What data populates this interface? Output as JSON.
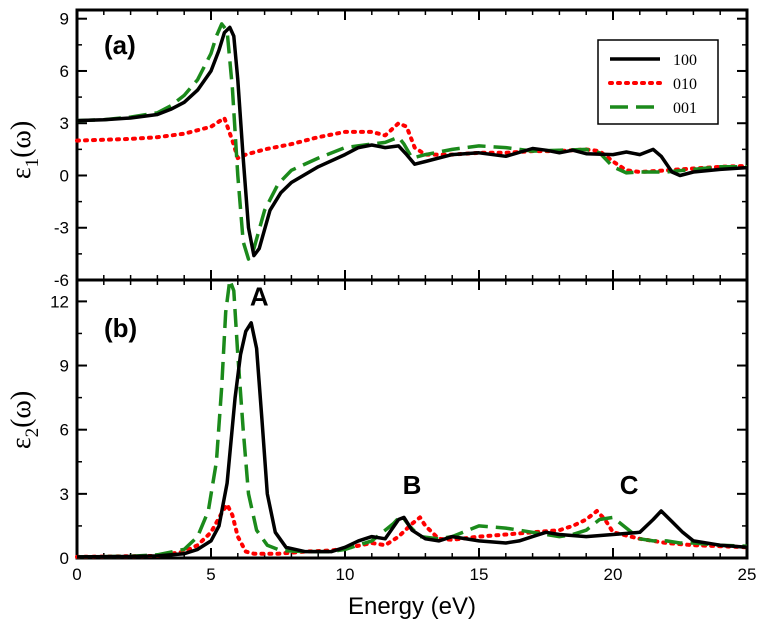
{
  "chart_data": [
    {
      "type": "line",
      "panel_label": "(a)",
      "ylabel": {
        "base": "ε",
        "sub": "1",
        "rest": "(ω)"
      },
      "xlim": [
        0,
        25
      ],
      "ylim": [
        -6,
        9.5
      ],
      "yticks": [
        -6,
        -3,
        0,
        3,
        6,
        9
      ],
      "yticklabels": [
        "-6",
        "-3",
        "0",
        "3",
        "6",
        "9"
      ],
      "series": [
        {
          "name": "100",
          "color": "#000000",
          "style": "solid",
          "points": [
            [
              0,
              3.15
            ],
            [
              1,
              3.2
            ],
            [
              2,
              3.3
            ],
            [
              3,
              3.5
            ],
            [
              3.5,
              3.8
            ],
            [
              4,
              4.2
            ],
            [
              4.5,
              4.9
            ],
            [
              5,
              6.0
            ],
            [
              5.3,
              7.2
            ],
            [
              5.5,
              8.2
            ],
            [
              5.7,
              8.5
            ],
            [
              5.85,
              8.0
            ],
            [
              6.0,
              5.5
            ],
            [
              6.2,
              1.0
            ],
            [
              6.4,
              -3.0
            ],
            [
              6.6,
              -4.6
            ],
            [
              6.8,
              -4.2
            ],
            [
              7.2,
              -2.0
            ],
            [
              7.6,
              -1.0
            ],
            [
              8,
              -0.4
            ],
            [
              9,
              0.5
            ],
            [
              10,
              1.2
            ],
            [
              10.5,
              1.6
            ],
            [
              11,
              1.75
            ],
            [
              11.5,
              1.6
            ],
            [
              12,
              1.7
            ],
            [
              12.3,
              1.2
            ],
            [
              12.6,
              0.65
            ],
            [
              13,
              0.8
            ],
            [
              14,
              1.2
            ],
            [
              15,
              1.3
            ],
            [
              16,
              1.1
            ],
            [
              17,
              1.55
            ],
            [
              17.5,
              1.45
            ],
            [
              18,
              1.3
            ],
            [
              18.5,
              1.45
            ],
            [
              19,
              1.25
            ],
            [
              20,
              1.2
            ],
            [
              20.5,
              1.35
            ],
            [
              21,
              1.2
            ],
            [
              21.5,
              1.5
            ],
            [
              21.8,
              1.1
            ],
            [
              22.2,
              0.2
            ],
            [
              22.5,
              0.0
            ],
            [
              23,
              0.2
            ],
            [
              24,
              0.35
            ],
            [
              25,
              0.45
            ]
          ]
        },
        {
          "name": "010",
          "color": "#ff0000",
          "style": "dotted",
          "points": [
            [
              0,
              2.0
            ],
            [
              2,
              2.1
            ],
            [
              3,
              2.2
            ],
            [
              4,
              2.4
            ],
            [
              5,
              2.8
            ],
            [
              5.5,
              3.3
            ],
            [
              5.8,
              2.0
            ],
            [
              6.0,
              1.0
            ],
            [
              6.3,
              1.2
            ],
            [
              7,
              1.5
            ],
            [
              8,
              1.8
            ],
            [
              9,
              2.2
            ],
            [
              10,
              2.5
            ],
            [
              11,
              2.5
            ],
            [
              11.5,
              2.3
            ],
            [
              12,
              3.0
            ],
            [
              12.3,
              2.8
            ],
            [
              12.6,
              1.6
            ],
            [
              13,
              1.2
            ],
            [
              14,
              1.2
            ],
            [
              15,
              1.3
            ],
            [
              16,
              1.3
            ],
            [
              17,
              1.4
            ],
            [
              18,
              1.4
            ],
            [
              19,
              1.5
            ],
            [
              19.5,
              1.4
            ],
            [
              20,
              0.8
            ],
            [
              20.5,
              0.3
            ],
            [
              21,
              0.2
            ],
            [
              22,
              0.3
            ],
            [
              23,
              0.4
            ],
            [
              24,
              0.5
            ],
            [
              25,
              0.55
            ]
          ]
        },
        {
          "name": "001",
          "color": "#1b8a1b",
          "style": "dashed",
          "points": [
            [
              0,
              3.15
            ],
            [
              1,
              3.2
            ],
            [
              2,
              3.35
            ],
            [
              3,
              3.6
            ],
            [
              3.5,
              4.0
            ],
            [
              4,
              4.6
            ],
            [
              4.5,
              5.5
            ],
            [
              5,
              7.0
            ],
            [
              5.2,
              8.0
            ],
            [
              5.4,
              8.7
            ],
            [
              5.6,
              8.3
            ],
            [
              5.8,
              5.0
            ],
            [
              6.0,
              0.0
            ],
            [
              6.2,
              -3.8
            ],
            [
              6.4,
              -4.8
            ],
            [
              6.6,
              -4.2
            ],
            [
              7,
              -2.0
            ],
            [
              7.5,
              -0.5
            ],
            [
              8,
              0.3
            ],
            [
              9,
              1.0
            ],
            [
              10,
              1.6
            ],
            [
              11,
              1.8
            ],
            [
              11.5,
              1.9
            ],
            [
              12,
              2.2
            ],
            [
              12.2,
              1.8
            ],
            [
              12.5,
              1.0
            ],
            [
              13,
              1.2
            ],
            [
              14,
              1.5
            ],
            [
              15,
              1.7
            ],
            [
              16,
              1.6
            ],
            [
              17,
              1.4
            ],
            [
              18,
              1.45
            ],
            [
              19,
              1.5
            ],
            [
              19.5,
              1.3
            ],
            [
              20,
              0.5
            ],
            [
              20.5,
              0.15
            ],
            [
              21,
              0.2
            ],
            [
              22,
              0.2
            ],
            [
              23,
              0.35
            ],
            [
              24,
              0.5
            ],
            [
              25,
              0.5
            ]
          ]
        }
      ],
      "legend": {
        "entries": [
          "100",
          "010",
          "001"
        ],
        "position": "top-right"
      }
    },
    {
      "type": "line",
      "panel_label": "(b)",
      "ylabel": {
        "base": "ε",
        "sub": "2",
        "rest": "(ω)"
      },
      "xlabel": "Energy (eV)",
      "xlim": [
        0,
        25
      ],
      "ylim": [
        0,
        13
      ],
      "yticks": [
        0,
        3,
        6,
        9,
        12
      ],
      "yticklabels": [
        "0",
        "3",
        "6",
        "9",
        "12"
      ],
      "xticks": [
        0,
        5,
        10,
        15,
        20,
        25
      ],
      "xticklabels": [
        "0",
        "5",
        "10",
        "15",
        "20",
        "25"
      ],
      "annotations": [
        {
          "text": "A",
          "x": 6.8,
          "y": 11.8
        },
        {
          "text": "B",
          "x": 12.5,
          "y": 3.0
        },
        {
          "text": "C",
          "x": 20.6,
          "y": 3.0
        }
      ],
      "series": [
        {
          "name": "100",
          "color": "#000000",
          "style": "solid",
          "points": [
            [
              0,
              0.05
            ],
            [
              2,
              0.07
            ],
            [
              3,
              0.1
            ],
            [
              4,
              0.2
            ],
            [
              4.5,
              0.4
            ],
            [
              5,
              0.8
            ],
            [
              5.3,
              1.5
            ],
            [
              5.6,
              3.5
            ],
            [
              5.9,
              7.5
            ],
            [
              6.1,
              9.5
            ],
            [
              6.3,
              10.6
            ],
            [
              6.5,
              11.0
            ],
            [
              6.7,
              9.8
            ],
            [
              6.9,
              6.5
            ],
            [
              7.1,
              3.0
            ],
            [
              7.4,
              1.2
            ],
            [
              7.8,
              0.5
            ],
            [
              8.5,
              0.3
            ],
            [
              9.5,
              0.3
            ],
            [
              10,
              0.5
            ],
            [
              10.5,
              0.8
            ],
            [
              11,
              1.0
            ],
            [
              11.5,
              0.9
            ],
            [
              12,
              1.8
            ],
            [
              12.2,
              1.9
            ],
            [
              12.5,
              1.3
            ],
            [
              13,
              0.9
            ],
            [
              13.5,
              0.8
            ],
            [
              14,
              1.0
            ],
            [
              15,
              0.8
            ],
            [
              16,
              0.7
            ],
            [
              16.5,
              0.8
            ],
            [
              17,
              1.0
            ],
            [
              17.5,
              1.2
            ],
            [
              18,
              1.1
            ],
            [
              19,
              1.0
            ],
            [
              20,
              1.1
            ],
            [
              21,
              1.2
            ],
            [
              21.5,
              1.8
            ],
            [
              21.8,
              2.2
            ],
            [
              22.2,
              1.7
            ],
            [
              22.6,
              1.2
            ],
            [
              23,
              0.8
            ],
            [
              24,
              0.6
            ],
            [
              25,
              0.5
            ]
          ]
        },
        {
          "name": "010",
          "color": "#ff0000",
          "style": "dotted",
          "points": [
            [
              0,
              0.05
            ],
            [
              3,
              0.1
            ],
            [
              4,
              0.3
            ],
            [
              4.5,
              0.6
            ],
            [
              5,
              1.2
            ],
            [
              5.4,
              2.1
            ],
            [
              5.6,
              2.5
            ],
            [
              5.8,
              2.0
            ],
            [
              6.0,
              1.0
            ],
            [
              6.3,
              0.3
            ],
            [
              6.6,
              0.2
            ],
            [
              7.5,
              0.2
            ],
            [
              8.5,
              0.3
            ],
            [
              9.5,
              0.35
            ],
            [
              10,
              0.45
            ],
            [
              11,
              0.7
            ],
            [
              11.5,
              0.6
            ],
            [
              12,
              1.0
            ],
            [
              12.5,
              1.6
            ],
            [
              12.8,
              1.9
            ],
            [
              13,
              1.5
            ],
            [
              13.5,
              0.9
            ],
            [
              14,
              0.85
            ],
            [
              15,
              1.0
            ],
            [
              16,
              1.1
            ],
            [
              17,
              1.2
            ],
            [
              18,
              1.3
            ],
            [
              18.5,
              1.5
            ],
            [
              19,
              1.8
            ],
            [
              19.4,
              2.2
            ],
            [
              19.7,
              1.8
            ],
            [
              20,
              1.2
            ],
            [
              21,
              0.9
            ],
            [
              22,
              0.7
            ],
            [
              23,
              0.6
            ],
            [
              24,
              0.55
            ],
            [
              25,
              0.5
            ]
          ]
        },
        {
          "name": "001",
          "color": "#1b8a1b",
          "style": "dashed",
          "points": [
            [
              0,
              0.05
            ],
            [
              2,
              0.08
            ],
            [
              3,
              0.15
            ],
            [
              4,
              0.4
            ],
            [
              4.5,
              1.0
            ],
            [
              4.9,
              2.2
            ],
            [
              5.2,
              4.5
            ],
            [
              5.4,
              8.0
            ],
            [
              5.55,
              11.5
            ],
            [
              5.7,
              13.0
            ],
            [
              5.85,
              12.5
            ],
            [
              6.0,
              9.5
            ],
            [
              6.2,
              6.0
            ],
            [
              6.4,
              3.0
            ],
            [
              6.7,
              1.3
            ],
            [
              7.1,
              0.6
            ],
            [
              7.6,
              0.35
            ],
            [
              8.5,
              0.3
            ],
            [
              9.5,
              0.3
            ],
            [
              10,
              0.4
            ],
            [
              11,
              0.8
            ],
            [
              11.8,
              1.6
            ],
            [
              12.1,
              2.0
            ],
            [
              12.4,
              1.5
            ],
            [
              12.8,
              1.0
            ],
            [
              13.5,
              0.9
            ],
            [
              14,
              1.0
            ],
            [
              15,
              1.5
            ],
            [
              16,
              1.4
            ],
            [
              17,
              1.2
            ],
            [
              18,
              1.0
            ],
            [
              18.5,
              1.1
            ],
            [
              19,
              1.3
            ],
            [
              19.5,
              1.8
            ],
            [
              20,
              1.9
            ],
            [
              20.5,
              1.4
            ],
            [
              21,
              0.9
            ],
            [
              21.5,
              0.8
            ],
            [
              22,
              0.8
            ],
            [
              22.5,
              0.7
            ],
            [
              23,
              0.7
            ],
            [
              24,
              0.6
            ],
            [
              25,
              0.55
            ]
          ]
        }
      ]
    }
  ]
}
